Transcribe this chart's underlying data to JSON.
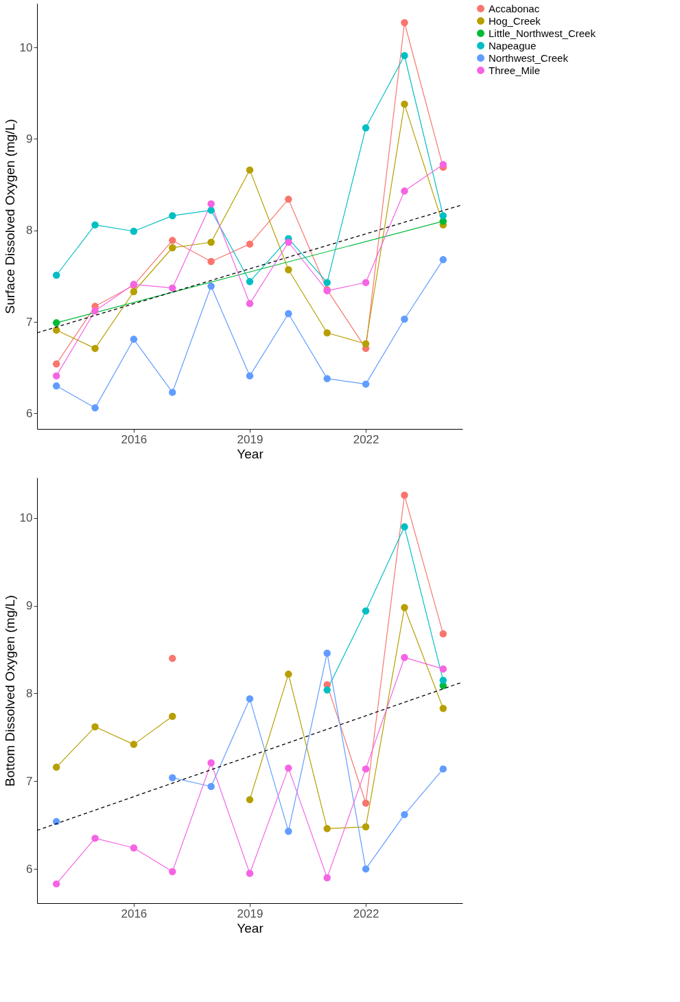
{
  "chart_data": [
    {
      "type": "line",
      "xlabel": "Year",
      "ylabel": "Surface Dissolved Oxygen (mg/L)",
      "xlim": [
        2013.5,
        2024.5
      ],
      "xticks": [
        2016,
        2019,
        2022
      ],
      "ylim": [
        5.83,
        10.48
      ],
      "yticks": [
        6,
        7,
        8,
        9,
        10
      ],
      "grid": false,
      "legend": "right",
      "marker": "circle",
      "line_style": "solid",
      "series": [
        {
          "name": "Accabonac",
          "color": "#f8766d",
          "x": [
            2014,
            2015,
            2016,
            2017,
            2018,
            2019,
            2020,
            2021,
            2022,
            2023,
            2024
          ],
          "values": [
            6.54,
            7.17,
            7.4,
            7.89,
            7.66,
            7.85,
            8.34,
            7.35,
            6.71,
            10.27,
            8.69
          ]
        },
        {
          "name": "Hog_Creek",
          "color": "#b79f00",
          "x": [
            2014,
            2015,
            2016,
            2017,
            2018,
            2019,
            2020,
            2021,
            2022,
            2023,
            2024
          ],
          "values": [
            6.91,
            6.71,
            7.33,
            7.81,
            7.87,
            8.66,
            7.57,
            6.88,
            6.76,
            9.38,
            8.06
          ]
        },
        {
          "name": "Little_Northwest_Creek",
          "color": "#00ba38",
          "x": [
            2014,
            2024
          ],
          "values": [
            6.99,
            8.1
          ]
        },
        {
          "name": "Napeague",
          "color": "#00bfc4",
          "x": [
            2014,
            2015,
            2016,
            2017,
            2018,
            2019,
            2020,
            2021,
            2022,
            2023,
            2024
          ],
          "values": [
            7.51,
            8.06,
            7.99,
            8.16,
            8.22,
            7.44,
            7.91,
            7.43,
            9.12,
            9.91,
            8.16
          ]
        },
        {
          "name": "Northwest_Creek",
          "color": "#619cff",
          "x": [
            2014,
            2015,
            2016,
            2017,
            2018,
            2019,
            2020,
            2021,
            2022,
            2023,
            2024
          ],
          "values": [
            6.3,
            6.06,
            6.81,
            6.23,
            7.39,
            6.41,
            7.09,
            6.38,
            6.32,
            7.03,
            7.68
          ]
        },
        {
          "name": "Three_Mile",
          "color": "#f564e3",
          "x": [
            2014,
            2015,
            2016,
            2017,
            2018,
            2019,
            2020,
            2021,
            2022,
            2023,
            2024
          ],
          "values": [
            6.41,
            7.12,
            7.41,
            7.37,
            8.29,
            7.2,
            7.87,
            7.34,
            7.43,
            8.43,
            8.72
          ]
        },
        {
          "color": "#000000",
          "x": [
            2013.5,
            2024.5
          ],
          "values": [
            6.88,
            8.28
          ],
          "line_style": "dashed",
          "marker": "none"
        }
      ]
    },
    {
      "type": "line",
      "xlabel": "Year",
      "ylabel": "Bottom Dissolved Oxygen (mg/L)",
      "xlim": [
        2013.5,
        2024.5
      ],
      "xticks": [
        2016,
        2019,
        2022
      ],
      "ylim": [
        5.61,
        10.46
      ],
      "yticks": [
        6,
        7,
        8,
        9,
        10
      ],
      "grid": false,
      "legend": "right",
      "marker": "circle",
      "line_style": "solid",
      "series": [
        {
          "name": "Accabonac",
          "color": "#f8766d",
          "x": [
            2017,
            2018,
            2021,
            2022,
            2023,
            2024
          ],
          "values": [
            8.4,
            null,
            8.1,
            6.75,
            10.26,
            8.68
          ]
        },
        {
          "name": "Hog_Creek",
          "color": "#b79f00",
          "x": [
            2014,
            2015,
            2016,
            2017,
            2018,
            2019,
            2020,
            2021,
            2022,
            2023,
            2024
          ],
          "values": [
            7.16,
            7.62,
            7.42,
            7.74,
            null,
            6.79,
            8.22,
            6.46,
            6.48,
            8.98,
            7.83
          ]
        },
        {
          "name": "Little_Northwest_Creek",
          "color": "#00ba38",
          "x": [
            2024
          ],
          "values": [
            8.09
          ]
        },
        {
          "name": "Napeague",
          "color": "#00bfc4",
          "x": [
            2021,
            2022,
            2023,
            2024
          ],
          "values": [
            8.04,
            8.94,
            9.9,
            8.15
          ]
        },
        {
          "name": "Northwest_Creek",
          "color": "#619cff",
          "x": [
            2014,
            2015,
            2017,
            2018,
            2019,
            2020,
            2021,
            2022,
            2023,
            2024
          ],
          "values": [
            6.54,
            null,
            7.04,
            6.94,
            7.94,
            6.43,
            8.46,
            6.0,
            6.62,
            7.14
          ]
        },
        {
          "name": "Three_Mile",
          "color": "#f564e3",
          "x": [
            2014,
            2015,
            2016,
            2017,
            2018,
            2019,
            2020,
            2021,
            2022,
            2023,
            2024
          ],
          "values": [
            5.83,
            6.35,
            6.24,
            5.97,
            7.21,
            5.95,
            7.15,
            5.9,
            7.14,
            8.41,
            8.28
          ]
        },
        {
          "color": "#000000",
          "x": [
            2013.5,
            2024.5
          ],
          "values": [
            6.44,
            8.13
          ],
          "line_style": "dashed",
          "marker": "none"
        }
      ]
    }
  ]
}
